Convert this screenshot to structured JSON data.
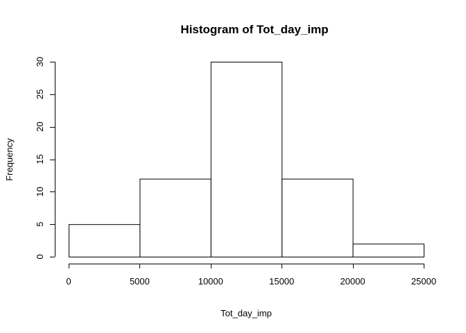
{
  "chart_data": {
    "type": "bar",
    "title": "Histogram of Tot_day_imp",
    "xlabel": "Tot_day_imp",
    "ylabel": "Frequency",
    "bins": [
      {
        "x0": 0,
        "x1": 5000,
        "count": 5
      },
      {
        "x0": 5000,
        "x1": 10000,
        "count": 12
      },
      {
        "x0": 10000,
        "x1": 15000,
        "count": 30
      },
      {
        "x0": 15000,
        "x1": 20000,
        "count": 12
      },
      {
        "x0": 20000,
        "x1": 25000,
        "count": 2
      }
    ],
    "xlim": [
      0,
      25000
    ],
    "ylim": [
      0,
      30
    ],
    "x_ticks": [
      0,
      5000,
      10000,
      15000,
      20000,
      25000
    ],
    "y_ticks": [
      0,
      5,
      10,
      15,
      20,
      25,
      30
    ],
    "x_tick_labels": [
      "0",
      "5000",
      "10000",
      "15000",
      "20000",
      "25000"
    ],
    "y_tick_labels": [
      "0",
      "5",
      "10",
      "15",
      "20",
      "25",
      "30"
    ],
    "grid": false,
    "bar_fill": "#ffffff",
    "bar_stroke": "#000000"
  }
}
